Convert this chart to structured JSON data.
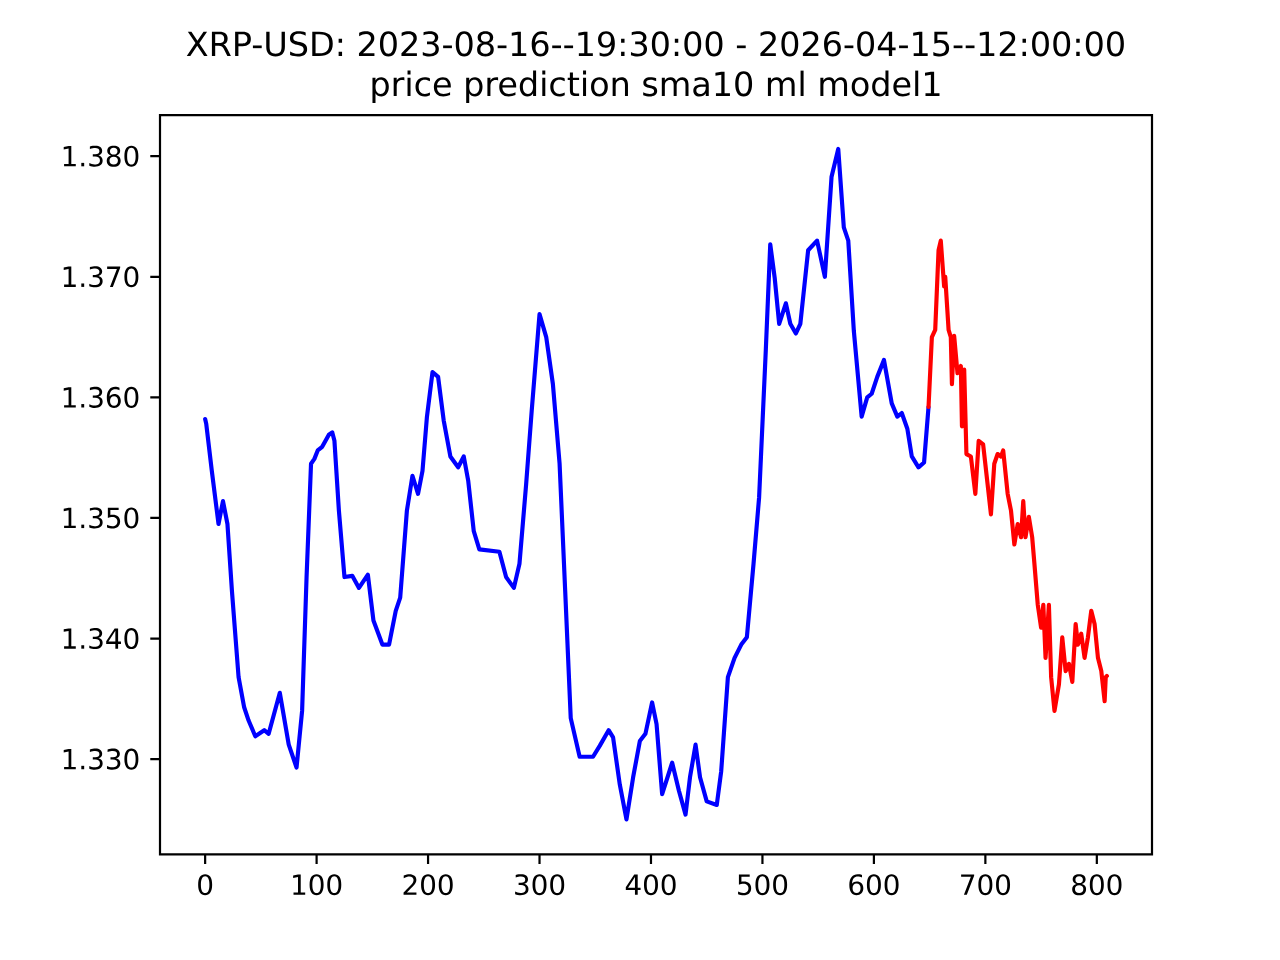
{
  "chart_data": {
    "type": "line",
    "title": "XRP-USD: 2023-08-16--19:30:00 - 2026-04-15--12:00:00",
    "subtitle": "price prediction sma10 ml model1",
    "xlim": [
      -40.5,
      849.5
    ],
    "ylim": [
      1.3221,
      1.3834
    ],
    "xticks": [
      0,
      100,
      200,
      300,
      400,
      500,
      600,
      700,
      800
    ],
    "yticks": [
      {
        "value": 1.33,
        "label": "1.330"
      },
      {
        "value": 1.34,
        "label": "1.340"
      },
      {
        "value": 1.35,
        "label": "1.350"
      },
      {
        "value": 1.36,
        "label": "1.360"
      },
      {
        "value": 1.37,
        "label": "1.370"
      },
      {
        "value": 1.38,
        "label": "1.380"
      }
    ],
    "series": [
      {
        "color": "#0000ff",
        "x": [
          0,
          1,
          6,
          12,
          16,
          20,
          24,
          30,
          35,
          39,
          45,
          53,
          57,
          67,
          75,
          82,
          87,
          91,
          95,
          98,
          101,
          105,
          108,
          111,
          114,
          116,
          120,
          125,
          132,
          138,
          146,
          151,
          159,
          165,
          171,
          175,
          181,
          186,
          191,
          195,
          199,
          204,
          209,
          214,
          220,
          227,
          232,
          236,
          241,
          246,
          264,
          270,
          277,
          282,
          288,
          293,
          300,
          306,
          312,
          318,
          323,
          328,
          336,
          348,
          354,
          362,
          366,
          372,
          378,
          384,
          390,
          395,
          401,
          405,
          410,
          419,
          425,
          431,
          435,
          440,
          444,
          450,
          459,
          463,
          469,
          475,
          481,
          486,
          492,
          497,
          503,
          507,
          511,
          515,
          521,
          525,
          530,
          534,
          541,
          549,
          556,
          562,
          568,
          573,
          577,
          582,
          589,
          594,
          598,
          603,
          609,
          616,
          621,
          625,
          630,
          634,
          640,
          645,
          649
        ],
        "values": [
          1.3582,
          1.3578,
          1.3539,
          1.3495,
          1.3514,
          1.3495,
          1.344,
          1.3368,
          1.3343,
          1.3332,
          1.3319,
          1.3324,
          1.3321,
          1.3355,
          1.3312,
          1.3293,
          1.334,
          1.3451,
          1.3545,
          1.3549,
          1.3556,
          1.3559,
          1.3564,
          1.3569,
          1.3571,
          1.3564,
          1.3506,
          1.3451,
          1.3452,
          1.3442,
          1.3453,
          1.3415,
          1.3395,
          1.3395,
          1.3423,
          1.3434,
          1.3506,
          1.3535,
          1.352,
          1.3539,
          1.3584,
          1.3621,
          1.3617,
          1.3581,
          1.3551,
          1.3542,
          1.3551,
          1.3531,
          1.3489,
          1.3474,
          1.3472,
          1.3451,
          1.3442,
          1.3462,
          1.3528,
          1.3589,
          1.3669,
          1.365,
          1.3611,
          1.3545,
          1.344,
          1.3334,
          1.3302,
          1.3302,
          1.3311,
          1.3324,
          1.3318,
          1.3279,
          1.325,
          1.3285,
          1.3315,
          1.3321,
          1.3347,
          1.3329,
          1.3271,
          1.3297,
          1.3274,
          1.3254,
          1.3285,
          1.3312,
          1.3285,
          1.3265,
          1.3262,
          1.329,
          1.3368,
          1.3384,
          1.3395,
          1.3401,
          1.3462,
          1.3517,
          1.3639,
          1.3727,
          1.3699,
          1.3661,
          1.3678,
          1.3661,
          1.3653,
          1.3661,
          1.3722,
          1.373,
          1.37,
          1.3783,
          1.3806,
          1.3741,
          1.373,
          1.3655,
          1.3584,
          1.36,
          1.3603,
          1.3617,
          1.3631,
          1.3595,
          1.3584,
          1.3587,
          1.3574,
          1.3551,
          1.3542,
          1.3546,
          1.3592
        ]
      },
      {
        "color": "#ff0000",
        "x": [
          649,
          652,
          655,
          658,
          660,
          663,
          664,
          667,
          669,
          670,
          672,
          675,
          678,
          679,
          681,
          683,
          687,
          691,
          694,
          698,
          702,
          705,
          708,
          711,
          714,
          716,
          720,
          723,
          726,
          729,
          732,
          734,
          736,
          739,
          742,
          744,
          747,
          750,
          752,
          754,
          757,
          759,
          762,
          764,
          766,
          769,
          772,
          775,
          778,
          781,
          783,
          786,
          789,
          792,
          795,
          798,
          801,
          804,
          807,
          808,
          809
        ],
        "values": [
          1.3592,
          1.365,
          1.3656,
          1.3722,
          1.373,
          1.3692,
          1.37,
          1.3656,
          1.365,
          1.3611,
          1.3651,
          1.362,
          1.3626,
          1.3576,
          1.3623,
          1.3553,
          1.3551,
          1.352,
          1.3564,
          1.3561,
          1.3528,
          1.3503,
          1.3545,
          1.3553,
          1.3551,
          1.3556,
          1.352,
          1.3506,
          1.3478,
          1.3495,
          1.3484,
          1.3514,
          1.3484,
          1.3501,
          1.3484,
          1.3462,
          1.3428,
          1.3409,
          1.3428,
          1.3384,
          1.3428,
          1.3368,
          1.334,
          1.3351,
          1.3362,
          1.3401,
          1.3373,
          1.3379,
          1.3364,
          1.3412,
          1.3395,
          1.3404,
          1.3384,
          1.3401,
          1.3423,
          1.3412,
          1.3384,
          1.3373,
          1.3348,
          1.3368,
          1.3369
        ]
      }
    ]
  }
}
